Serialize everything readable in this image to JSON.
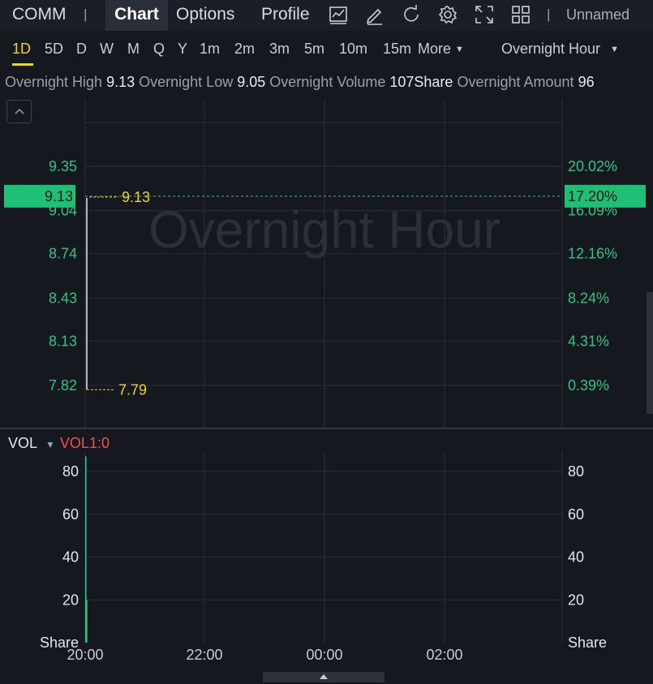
{
  "topbar": {
    "symbol": "COMM",
    "separator": "|",
    "tabs": [
      "Chart",
      "Options",
      "Profile"
    ],
    "layout_name": "Unnamed",
    "icons": [
      "indicator-icon",
      "draw-icon",
      "refresh-icon",
      "settings-icon",
      "fullscreen-icon",
      "layout-grid-icon"
    ]
  },
  "timeframes": {
    "items": [
      "1D",
      "5D",
      "D",
      "W",
      "M",
      "Q",
      "Y",
      "1m",
      "2m",
      "3m",
      "5m",
      "10m",
      "15m"
    ],
    "active": "1D",
    "more_label": "More",
    "session_label": "Overnight Hour"
  },
  "stats": {
    "high_label": "Overnight High",
    "high_value": "9.13",
    "low_label": "Overnight Low",
    "low_value": "9.05",
    "volume_label": "Overnight Volume",
    "volume_value": "107Share",
    "amount_label": "Overnight Amount",
    "amount_value": "96"
  },
  "chart_data": {
    "type": "line",
    "watermark": "Overnight Hour",
    "price_axis_left": [
      "9.35",
      "9.04",
      "8.74",
      "8.43",
      "8.13",
      "7.82"
    ],
    "price_axis_right": [
      "20.02%",
      "16.09%",
      "12.16%",
      "8.24%",
      "4.31%",
      "0.39%"
    ],
    "current_price_label": "9.13",
    "current_change_label": "17.20%",
    "high_marker": "9.13",
    "low_marker": "7.79",
    "x_labels": [
      "20:00",
      "22:00",
      "00:00",
      "02:00"
    ],
    "line_points": [
      {
        "x": "20:00",
        "y": 7.79
      },
      {
        "x": "20:00",
        "y": 9.13
      }
    ],
    "volume": {
      "indicator": "VOL",
      "indicator_value": "VOL1:0",
      "axis": [
        "80",
        "60",
        "40",
        "20"
      ],
      "unit": "Share",
      "bars": [
        {
          "x": "20:00",
          "value": 87
        },
        {
          "x": "20:00",
          "value": 20
        }
      ]
    },
    "colors": {
      "up": "#2fc486",
      "current": "#1fbf75",
      "marker": "#f5d21e",
      "grid": "#2a2e38"
    }
  }
}
